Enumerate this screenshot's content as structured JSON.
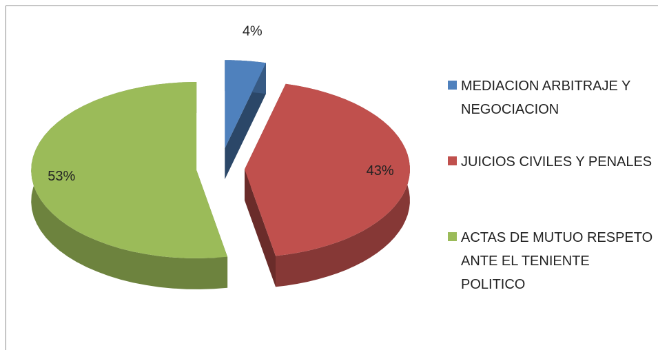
{
  "chart_data": {
    "type": "pie",
    "categories": [
      "MEDIACION ARBITRAJE Y NEGOCIACION",
      "JUICIOS CIVILES Y PENALES",
      "ACTAS DE MUTUO RESPETO ANTE EL TENIENTE POLITICO"
    ],
    "values": [
      4,
      43,
      53
    ],
    "value_labels": [
      "4%",
      "43%",
      "53%"
    ],
    "colors": [
      "#4f81bd",
      "#c0504d",
      "#9bbb59"
    ],
    "legend": "right"
  }
}
